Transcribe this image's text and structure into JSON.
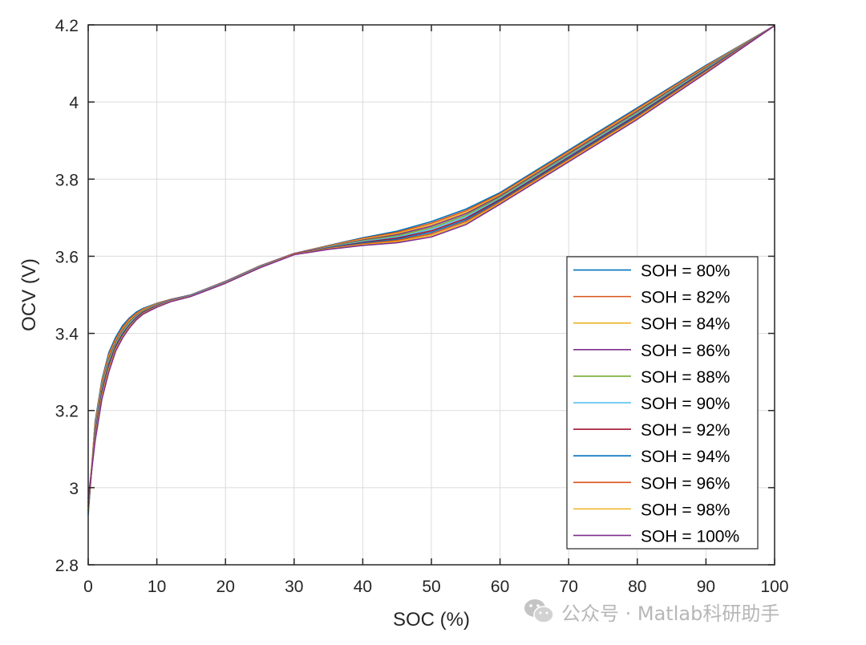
{
  "chart_data": {
    "type": "line",
    "xlabel": "SOC (%)",
    "ylabel": "OCV (V)",
    "xlim": [
      0,
      100
    ],
    "ylim": [
      2.8,
      4.2
    ],
    "xticks": [
      0,
      10,
      20,
      30,
      40,
      50,
      60,
      70,
      80,
      90,
      100
    ],
    "yticks": [
      2.8,
      3,
      3.2,
      3.4,
      3.6,
      3.8,
      4,
      4.2
    ],
    "ytick_labels": [
      "2.8",
      "3",
      "3.2",
      "3.4",
      "3.6",
      "3.8",
      "4",
      "4.2"
    ],
    "grid": true,
    "legend_position": "bottom-right",
    "x": [
      0,
      1,
      2,
      3,
      4,
      5,
      6,
      7,
      8,
      10,
      12,
      15,
      20,
      25,
      30,
      35,
      40,
      45,
      50,
      55,
      60,
      70,
      80,
      90,
      100
    ],
    "series": [
      {
        "name": "SOH = 80%",
        "color": "#0072BD",
        "values": [
          2.93,
          3.17,
          3.28,
          3.35,
          3.39,
          3.42,
          3.44,
          3.455,
          3.465,
          3.478,
          3.488,
          3.5,
          3.535,
          3.575,
          3.607,
          3.628,
          3.648,
          3.665,
          3.69,
          3.722,
          3.765,
          3.875,
          3.985,
          4.095,
          4.198
        ]
      },
      {
        "name": "SOH = 82%",
        "color": "#D95319",
        "values": [
          2.94,
          3.165,
          3.275,
          3.345,
          3.385,
          3.415,
          3.437,
          3.452,
          3.463,
          3.477,
          3.488,
          3.5,
          3.535,
          3.575,
          3.607,
          3.627,
          3.646,
          3.662,
          3.686,
          3.718,
          3.762,
          3.872,
          3.982,
          4.093,
          4.198
        ]
      },
      {
        "name": "SOH = 84%",
        "color": "#EDB120",
        "values": [
          2.95,
          3.16,
          3.27,
          3.34,
          3.38,
          3.41,
          3.433,
          3.449,
          3.461,
          3.476,
          3.487,
          3.5,
          3.534,
          3.574,
          3.607,
          3.626,
          3.644,
          3.659,
          3.682,
          3.714,
          3.759,
          3.869,
          3.979,
          4.091,
          4.198
        ]
      },
      {
        "name": "SOH = 86%",
        "color": "#7E2F8E",
        "values": [
          2.94,
          3.155,
          3.265,
          3.335,
          3.377,
          3.407,
          3.43,
          3.447,
          3.459,
          3.475,
          3.487,
          3.5,
          3.534,
          3.574,
          3.607,
          3.625,
          3.642,
          3.656,
          3.678,
          3.71,
          3.756,
          3.866,
          3.976,
          4.089,
          4.198
        ]
      },
      {
        "name": "SOH = 88%",
        "color": "#77AC30",
        "values": [
          2.94,
          3.15,
          3.26,
          3.33,
          3.374,
          3.404,
          3.428,
          3.445,
          3.458,
          3.474,
          3.486,
          3.499,
          3.533,
          3.573,
          3.606,
          3.624,
          3.64,
          3.653,
          3.674,
          3.706,
          3.753,
          3.863,
          3.973,
          4.087,
          4.198
        ]
      },
      {
        "name": "SOH = 90%",
        "color": "#4DBEEE",
        "values": [
          2.95,
          3.145,
          3.255,
          3.325,
          3.37,
          3.401,
          3.425,
          3.443,
          3.456,
          3.473,
          3.486,
          3.499,
          3.533,
          3.573,
          3.606,
          3.623,
          3.638,
          3.65,
          3.67,
          3.702,
          3.75,
          3.86,
          3.97,
          4.085,
          4.198
        ]
      },
      {
        "name": "SOH = 92%",
        "color": "#A2142F",
        "values": [
          2.95,
          3.14,
          3.25,
          3.32,
          3.367,
          3.398,
          3.422,
          3.441,
          3.455,
          3.472,
          3.485,
          3.498,
          3.532,
          3.572,
          3.606,
          3.622,
          3.636,
          3.647,
          3.666,
          3.698,
          3.747,
          3.857,
          3.967,
          4.083,
          4.198
        ]
      },
      {
        "name": "SOH = 94%",
        "color": "#0072BD",
        "values": [
          2.96,
          3.135,
          3.245,
          3.315,
          3.363,
          3.395,
          3.42,
          3.439,
          3.453,
          3.471,
          3.485,
          3.498,
          3.532,
          3.572,
          3.605,
          3.621,
          3.634,
          3.644,
          3.662,
          3.694,
          3.744,
          3.854,
          3.964,
          4.081,
          4.198
        ]
      },
      {
        "name": "SOH = 96%",
        "color": "#D95319",
        "values": [
          2.96,
          3.13,
          3.24,
          3.31,
          3.36,
          3.392,
          3.418,
          3.437,
          3.452,
          3.47,
          3.484,
          3.497,
          3.531,
          3.571,
          3.605,
          3.62,
          3.632,
          3.641,
          3.658,
          3.69,
          3.741,
          3.851,
          3.961,
          4.079,
          4.198
        ]
      },
      {
        "name": "SOH = 98%",
        "color": "#EDB120",
        "values": [
          2.97,
          3.125,
          3.235,
          3.305,
          3.357,
          3.39,
          3.416,
          3.436,
          3.451,
          3.469,
          3.483,
          3.497,
          3.531,
          3.571,
          3.605,
          3.619,
          3.63,
          3.638,
          3.654,
          3.686,
          3.738,
          3.848,
          3.958,
          4.077,
          4.198
        ]
      },
      {
        "name": "SOH = 100%",
        "color": "#7E2F8E",
        "values": [
          2.97,
          3.12,
          3.23,
          3.3,
          3.354,
          3.388,
          3.414,
          3.435,
          3.45,
          3.468,
          3.482,
          3.496,
          3.53,
          3.57,
          3.604,
          3.618,
          3.628,
          3.635,
          3.65,
          3.682,
          3.735,
          3.845,
          3.955,
          4.075,
          4.198
        ]
      }
    ]
  },
  "watermark": {
    "text": "公众号 · Matlab科研助手",
    "icon": "wechat-icon"
  }
}
